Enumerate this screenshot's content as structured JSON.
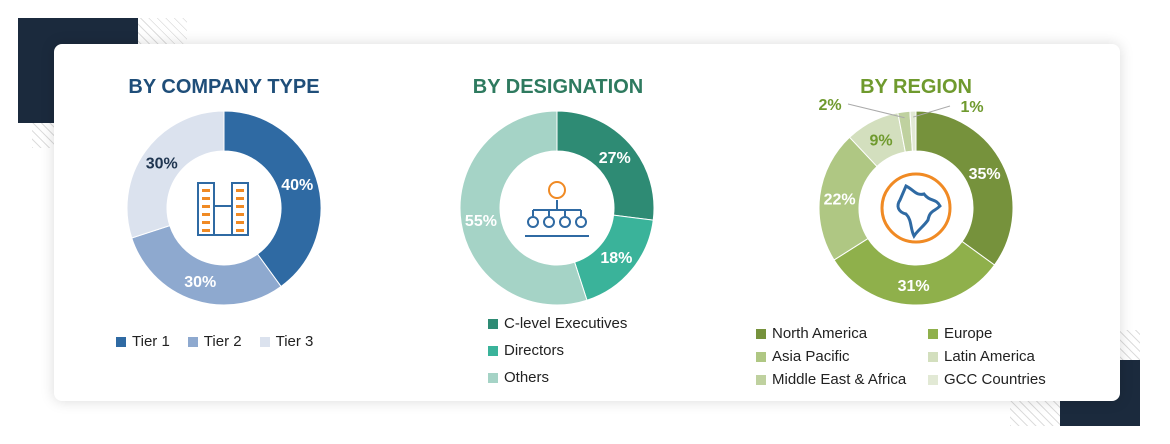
{
  "chart_data": [
    {
      "type": "pie",
      "title": "BY COMPANY TYPE",
      "title_color": "#1f4e79",
      "donut": true,
      "icon": "buildings-icon",
      "categories": [
        "Tier 1",
        "Tier 2",
        "Tier 3"
      ],
      "values": [
        40,
        30,
        30
      ],
      "labels": [
        "40%",
        "30%",
        "30%"
      ],
      "colors": [
        "#2f6aa3",
        "#8ea9cf",
        "#dbe2ee"
      ],
      "label_colors": [
        "#ffffff",
        "#ffffff",
        "#1f3550"
      ],
      "legend": "bottom"
    },
    {
      "type": "pie",
      "title": "BY DESIGNATION",
      "title_color": "#2e7a5f",
      "donut": true,
      "icon": "organization-hierarchy-icon",
      "categories": [
        "C-level Executives",
        "Directors",
        "Others"
      ],
      "values": [
        27,
        18,
        55
      ],
      "labels": [
        "27%",
        "18%",
        "55%"
      ],
      "colors": [
        "#2e8b74",
        "#3ab39a",
        "#a5d3c6"
      ],
      "label_colors": [
        "#ffffff",
        "#ffffff",
        "#ffffff"
      ],
      "legend": "bottom"
    },
    {
      "type": "pie",
      "title": "BY REGION",
      "title_color": "#6f9a2e",
      "donut": true,
      "icon": "globe-icon",
      "categories": [
        "North America",
        "Europe",
        "Asia Pacific",
        "Latin America",
        "Middle East & Africa",
        "GCC Countries"
      ],
      "values": [
        35,
        31,
        22,
        9,
        2,
        1
      ],
      "labels": [
        "35%",
        "31%",
        "22%",
        "9%",
        "2%",
        "1%"
      ],
      "colors": [
        "#76923c",
        "#8fb04b",
        "#afc783",
        "#d3dfbe",
        "#bfd19f",
        "#e2e9d5"
      ],
      "label_colors": [
        "#ffffff",
        "#ffffff",
        "#ffffff",
        "#6f9a2e",
        "#6f9a2e",
        "#6f9a2e"
      ],
      "legend": "bottom"
    }
  ]
}
